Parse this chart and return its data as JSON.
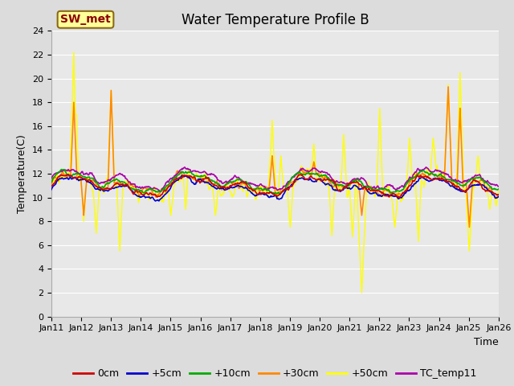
{
  "title": "Water Temperature Profile B",
  "xlabel": "Time",
  "ylabel": "Temperature(C)",
  "ylim": [
    0,
    24
  ],
  "yticks": [
    0,
    2,
    4,
    6,
    8,
    10,
    12,
    14,
    16,
    18,
    20,
    22,
    24
  ],
  "xtick_labels": [
    "Jan 11",
    "Jan 12",
    "Jan 13",
    "Jan 14",
    "Jan 15",
    "Jan 16",
    "Jan 17",
    "Jan 18",
    "Jan 19",
    "Jan 20",
    "Jan 21",
    "Jan 22",
    "Jan 23",
    "Jan 24",
    "Jan 25",
    "Jan 26"
  ],
  "series_colors": {
    "0cm": "#cc0000",
    "+5cm": "#0000cc",
    "+10cm": "#00aa00",
    "+30cm": "#ff8800",
    "+50cm": "#ffff00",
    "TC_temp11": "#aa00aa"
  },
  "bg_color": "#dcdcdc",
  "plot_bg_color": "#e8e8e8",
  "grid_color": "#ffffff",
  "annotation_text": "SW_met",
  "annotation_box_color": "#ffff99",
  "annotation_text_color": "#8b0000",
  "title_fontsize": 12,
  "axis_label_fontsize": 9,
  "tick_fontsize": 8,
  "legend_fontsize": 9
}
